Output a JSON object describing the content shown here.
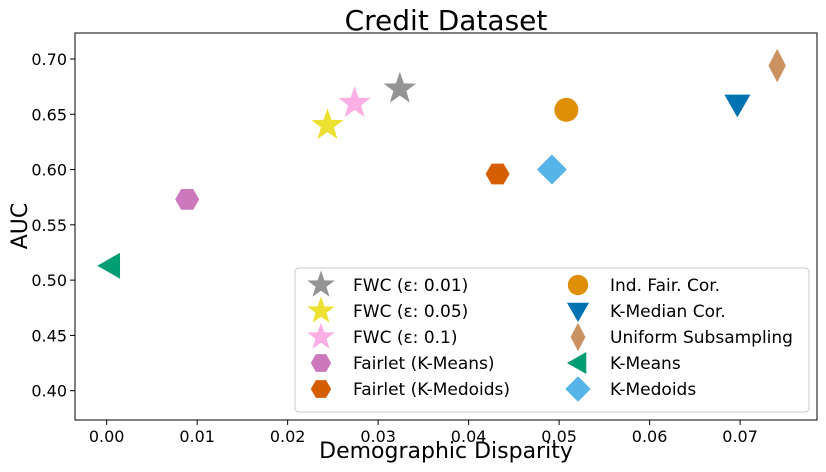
{
  "chart_data": {
    "type": "scatter",
    "title": "Credit Dataset",
    "xlabel": "Demographic Disparity",
    "ylabel": "AUC",
    "xlim": [
      -0.0035,
      0.0785
    ],
    "ylim": [
      0.3735,
      0.7235
    ],
    "xticks": [
      0.0,
      0.01,
      0.02,
      0.03,
      0.04,
      0.05,
      0.06,
      0.07
    ],
    "yticks": [
      0.4,
      0.45,
      0.5,
      0.55,
      0.6,
      0.65,
      0.7
    ],
    "xtick_labels": [
      "0.00",
      "0.01",
      "0.02",
      "0.03",
      "0.04",
      "0.05",
      "0.06",
      "0.07"
    ],
    "ytick_labels": [
      "0.40",
      "0.45",
      "0.50",
      "0.55",
      "0.60",
      "0.65",
      "0.70"
    ],
    "legend_position": "lower-right",
    "series": [
      {
        "name": "FWC (ε: 0.01)",
        "x": 0.0324,
        "y": 0.673,
        "marker": "star",
        "color": "#949494"
      },
      {
        "name": "FWC (ε: 0.05)",
        "x": 0.0244,
        "y": 0.64,
        "marker": "star",
        "color": "#ece133"
      },
      {
        "name": "FWC (ε: 0.1)",
        "x": 0.0274,
        "y": 0.66,
        "marker": "star",
        "color": "#fbafe4"
      },
      {
        "name": "Fairlet (K-Means)",
        "x": 0.0089,
        "y": 0.573,
        "marker": "hexagon",
        "color": "#cc78bc"
      },
      {
        "name": "Fairlet (K-Medoids)",
        "x": 0.0432,
        "y": 0.596,
        "marker": "hexagon",
        "color": "#d55e00"
      },
      {
        "name": "Ind. Fair. Cor.",
        "x": 0.0508,
        "y": 0.654,
        "marker": "circle",
        "color": "#de8f05"
      },
      {
        "name": "K-Median Cor.",
        "x": 0.0697,
        "y": 0.659,
        "marker": "triangle-down",
        "color": "#0173b2"
      },
      {
        "name": "Uniform Subsampling",
        "x": 0.0741,
        "y": 0.694,
        "marker": "thin-diamond",
        "color": "#ca9161"
      },
      {
        "name": "K-Means",
        "x": 0.0004,
        "y": 0.513,
        "marker": "triangle-left",
        "color": "#029e73"
      },
      {
        "name": "K-Medoids",
        "x": 0.0492,
        "y": 0.6,
        "marker": "diamond",
        "color": "#56b4e9"
      }
    ]
  }
}
